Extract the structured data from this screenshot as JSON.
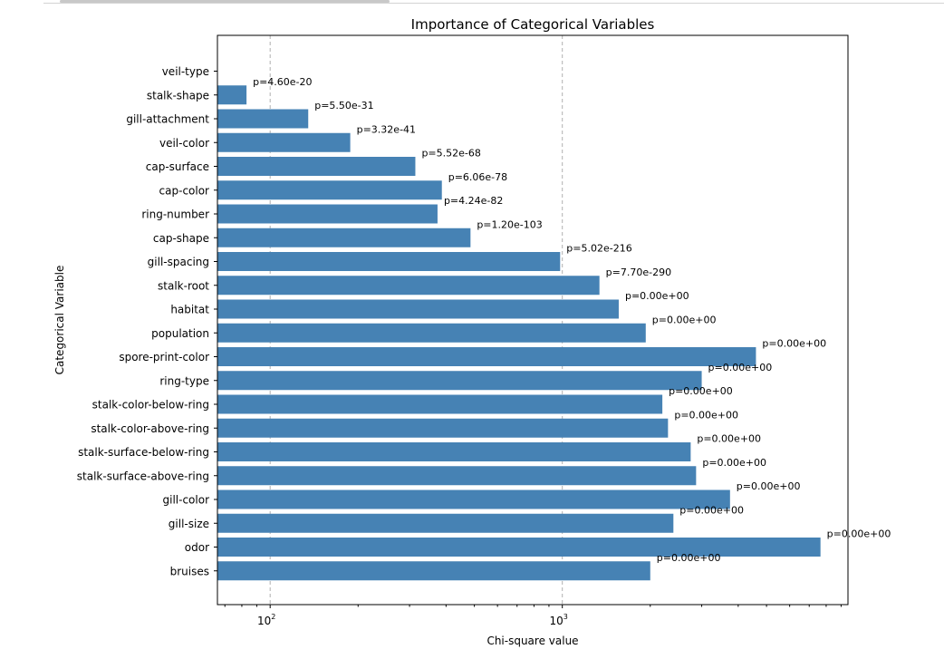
{
  "chart_data": {
    "type": "bar",
    "orientation": "horizontal",
    "title": "Importance of Categorical Variables",
    "xlabel": "Chi-square value",
    "ylabel": "Categorical Variable",
    "xscale": "log",
    "xlim": [
      66,
      9500
    ],
    "xticks": [
      {
        "value": 100,
        "base": "10",
        "exp": "2"
      },
      {
        "value": 1000,
        "base": "10",
        "exp": "3"
      }
    ],
    "grid": "vertical-dashed",
    "bar_color": "#4682b4",
    "categories": [
      "veil-type",
      "stalk-shape",
      "gill-attachment",
      "veil-color",
      "cap-surface",
      "cap-color",
      "ring-number",
      "cap-shape",
      "gill-spacing",
      "stalk-root",
      "habitat",
      "population",
      "spore-print-color",
      "ring-type",
      "stalk-color-below-ring",
      "stalk-color-above-ring",
      "stalk-surface-below-ring",
      "stalk-surface-above-ring",
      "gill-color",
      "gill-size",
      "odor",
      "bruises"
    ],
    "values": [
      0,
      83,
      135,
      188,
      314,
      387,
      374,
      485,
      983,
      1340,
      1560,
      1930,
      4600,
      3000,
      2200,
      2300,
      2750,
      2870,
      3750,
      2400,
      7650,
      2000
    ],
    "annotations": [
      "",
      "p=4.60e-20",
      "p=5.50e-31",
      "p=3.32e-41",
      "p=5.52e-68",
      "p=6.06e-78",
      "p=4.24e-82",
      "p=1.20e-103",
      "p=5.02e-216",
      "p=7.70e-290",
      "p=0.00e+00",
      "p=0.00e+00",
      "p=0.00e+00",
      "p=0.00e+00",
      "p=0.00e+00",
      "p=0.00e+00",
      "p=0.00e+00",
      "p=0.00e+00",
      "p=0.00e+00",
      "p=0.00e+00",
      "p=0.00e+00",
      "p=0.00e+00"
    ]
  }
}
